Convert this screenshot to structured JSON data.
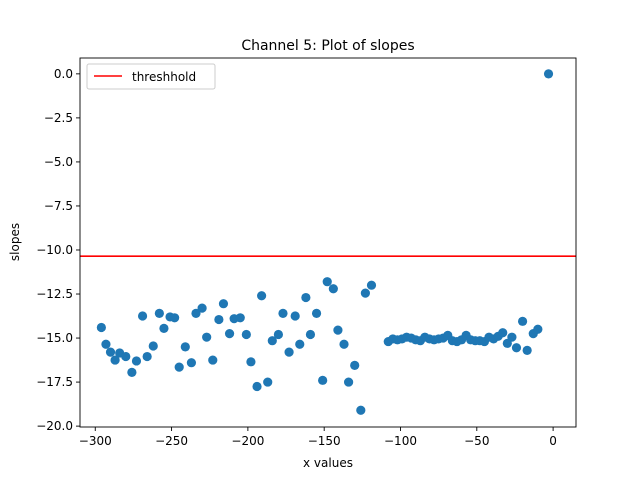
{
  "chart_data": {
    "type": "scatter",
    "title": "Channel 5: Plot of slopes",
    "xlabel": "x values",
    "ylabel": "slopes",
    "xlim": [
      -310,
      15
    ],
    "ylim": [
      -20.05,
      0.9
    ],
    "xticks": [
      -300,
      -250,
      -200,
      -150,
      -100,
      -50,
      0
    ],
    "xtick_labels": [
      "−300",
      "−250",
      "−200",
      "−150",
      "−100",
      "−50",
      "0"
    ],
    "yticks": [
      0,
      -2.5,
      -5,
      -7.5,
      -10,
      -12.5,
      -15,
      -17.5,
      -20
    ],
    "ytick_labels": [
      "0.0",
      "−2.5",
      "−5.0",
      "−7.5",
      "−10.0",
      "−12.5",
      "−15.0",
      "−17.5",
      "−20.0"
    ],
    "grid": false,
    "legend": {
      "position": "top-left",
      "entries": [
        "threshhold"
      ]
    },
    "threshold": {
      "name": "threshhold",
      "y": -10.35,
      "color": "#ff0000"
    },
    "point_color": "#1f77b4",
    "points": [
      [
        -296,
        -14.4
      ],
      [
        -293,
        -15.35
      ],
      [
        -290,
        -15.8
      ],
      [
        -287,
        -16.25
      ],
      [
        -284,
        -15.85
      ],
      [
        -280,
        -16.05
      ],
      [
        -276,
        -16.95
      ],
      [
        -273,
        -16.3
      ],
      [
        -269,
        -13.75
      ],
      [
        -266,
        -16.05
      ],
      [
        -262,
        -15.45
      ],
      [
        -258,
        -13.6
      ],
      [
        -255,
        -14.45
      ],
      [
        -251,
        -13.8
      ],
      [
        -248,
        -13.85
      ],
      [
        -245,
        -16.65
      ],
      [
        -241,
        -15.5
      ],
      [
        -237,
        -16.4
      ],
      [
        -234,
        -13.6
      ],
      [
        -230,
        -13.3
      ],
      [
        -227,
        -14.95
      ],
      [
        -223,
        -16.25
      ],
      [
        -219,
        -13.95
      ],
      [
        -216,
        -13.05
      ],
      [
        -212,
        -14.75
      ],
      [
        -209,
        -13.9
      ],
      [
        -205,
        -13.85
      ],
      [
        -201,
        -14.8
      ],
      [
        -198,
        -16.35
      ],
      [
        -194,
        -17.75
      ],
      [
        -191,
        -12.6
      ],
      [
        -187,
        -17.5
      ],
      [
        -184,
        -15.15
      ],
      [
        -180,
        -14.8
      ],
      [
        -177,
        -13.6
      ],
      [
        -173,
        -15.8
      ],
      [
        -169,
        -13.75
      ],
      [
        -166,
        -15.35
      ],
      [
        -162,
        -12.7
      ],
      [
        -159,
        -14.8
      ],
      [
        -155,
        -13.6
      ],
      [
        -151,
        -17.4
      ],
      [
        -148,
        -11.8
      ],
      [
        -144,
        -12.2
      ],
      [
        -141,
        -14.55
      ],
      [
        -137,
        -15.35
      ],
      [
        -134,
        -17.5
      ],
      [
        -130,
        -16.55
      ],
      [
        -126,
        -19.1
      ],
      [
        -123,
        -12.45
      ],
      [
        -119,
        -12.0
      ],
      [
        -108,
        -15.2
      ],
      [
        -105,
        -15.05
      ],
      [
        -102,
        -15.1
      ],
      [
        -99,
        -15.05
      ],
      [
        -96,
        -14.95
      ],
      [
        -93,
        -15.0
      ],
      [
        -90,
        -15.1
      ],
      [
        -87,
        -15.15
      ],
      [
        -84,
        -14.95
      ],
      [
        -81,
        -15.05
      ],
      [
        -78,
        -15.1
      ],
      [
        -75,
        -15.05
      ],
      [
        -72,
        -15.0
      ],
      [
        -69,
        -14.85
      ],
      [
        -66,
        -15.15
      ],
      [
        -63,
        -15.2
      ],
      [
        -60,
        -15.1
      ],
      [
        -57,
        -14.85
      ],
      [
        -54,
        -15.1
      ],
      [
        -51,
        -15.15
      ],
      [
        -48,
        -15.15
      ],
      [
        -45,
        -15.2
      ],
      [
        -42,
        -14.95
      ],
      [
        -39,
        -15.05
      ],
      [
        -36,
        -14.9
      ],
      [
        -33,
        -14.7
      ],
      [
        -30,
        -15.3
      ],
      [
        -27,
        -14.95
      ],
      [
        -24,
        -15.55
      ],
      [
        -20,
        -14.05
      ],
      [
        -17,
        -15.7
      ],
      [
        -13,
        -14.75
      ],
      [
        -10,
        -14.5
      ],
      [
        -3,
        0.0
      ]
    ]
  }
}
